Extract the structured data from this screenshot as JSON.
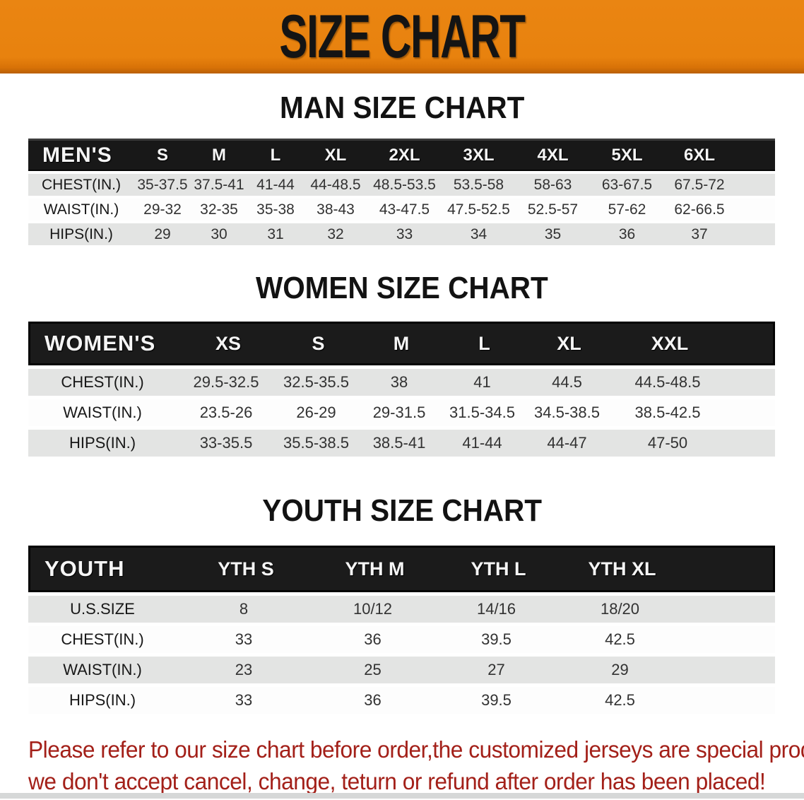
{
  "banner": {
    "title": "SIZE CHART"
  },
  "sections": [
    {
      "title": "MAN SIZE CHART",
      "group_label": "MEN'S",
      "columns": [
        "S",
        "M",
        "L",
        "XL",
        "2XL",
        "3XL",
        "4XL",
        "5XL",
        "6XL"
      ],
      "rows": [
        {
          "label": "CHEST(IN.)",
          "values": [
            "35-37.5",
            "37.5-41",
            "41-44",
            "44-48.5",
            "48.5-53.5",
            "53.5-58",
            "58-63",
            "63-67.5",
            "67.5-72"
          ]
        },
        {
          "label": "WAIST(IN.)",
          "values": [
            "29-32",
            "32-35",
            "35-38",
            "38-43",
            "43-47.5",
            "47.5-52.5",
            "52.5-57",
            "57-62",
            "62-66.5"
          ]
        },
        {
          "label": "HIPS(IN.)",
          "values": [
            "29",
            "30",
            "31",
            "32",
            "33",
            "34",
            "35",
            "36",
            "37"
          ]
        }
      ]
    },
    {
      "title": "WOMEN SIZE CHART",
      "group_label": "WOMEN'S",
      "columns": [
        "XS",
        "S",
        "M",
        "L",
        "XL",
        "XXL"
      ],
      "rows": [
        {
          "label": "CHEST(IN.)",
          "values": [
            "29.5-32.5",
            "32.5-35.5",
            "38",
            "41",
            "44.5",
            "44.5-48.5"
          ]
        },
        {
          "label": "WAIST(IN.)",
          "values": [
            "23.5-26",
            "26-29",
            "29-31.5",
            "31.5-34.5",
            "34.5-38.5",
            "38.5-42.5"
          ]
        },
        {
          "label": "HIPS(IN.)",
          "values": [
            "33-35.5",
            "35.5-38.5",
            "38.5-41",
            "41-44",
            "44-47",
            "47-50"
          ]
        }
      ]
    },
    {
      "title": "YOUTH SIZE CHART",
      "group_label": "YOUTH",
      "columns": [
        "YTH S",
        "YTH M",
        "YTH L",
        "YTH XL"
      ],
      "rows": [
        {
          "label": "U.S.SIZE",
          "values": [
            "8",
            "10/12",
            "14/16",
            "18/20"
          ]
        },
        {
          "label": "CHEST(IN.)",
          "values": [
            "33",
            "36",
            "39.5",
            "42.5"
          ]
        },
        {
          "label": "WAIST(IN.)",
          "values": [
            "23",
            "25",
            "27",
            "29"
          ]
        },
        {
          "label": "HIPS(IN.)",
          "values": [
            "33",
            "36",
            "39.5",
            "42.5"
          ]
        }
      ]
    }
  ],
  "disclaimer": {
    "line1": "Please refer to our size chart before order,the customized jerseys are special products,",
    "line2": "we don't accept cancel, change, teturn or refund after order has been placed!"
  },
  "colors": {
    "banner_bg": "#e8820e",
    "banner_text": "#141414",
    "table_header_bg": "#181818",
    "table_header_text": "#f5f5f5",
    "row_gray": "#e3e4e3",
    "row_white": "#fdfdfd",
    "disclaimer_text": "#a32019"
  }
}
